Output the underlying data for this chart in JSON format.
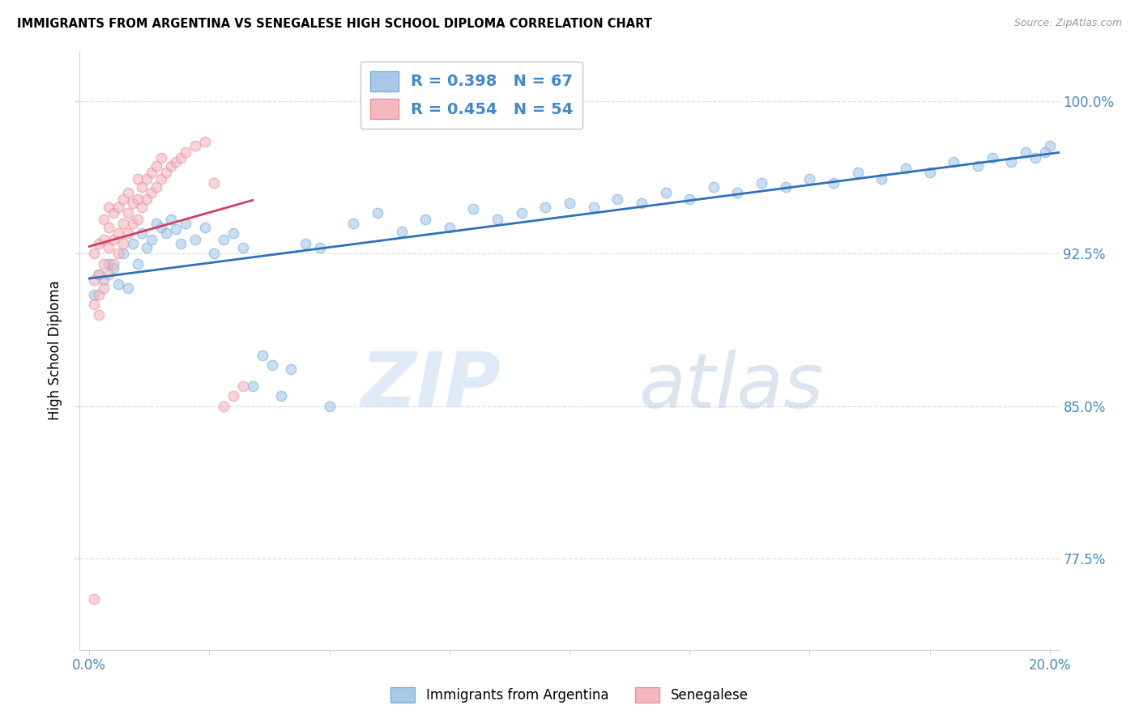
{
  "title": "IMMIGRANTS FROM ARGENTINA VS SENEGALESE HIGH SCHOOL DIPLOMA CORRELATION CHART",
  "source": "Source: ZipAtlas.com",
  "ylabel": "High School Diploma",
  "ytick_labels": [
    "77.5%",
    "85.0%",
    "92.5%",
    "100.0%"
  ],
  "ytick_values": [
    0.775,
    0.85,
    0.925,
    1.0
  ],
  "xlim": [
    -0.002,
    0.202
  ],
  "ylim": [
    0.73,
    1.025
  ],
  "xtick_positions": [
    0.0,
    0.025,
    0.05,
    0.075,
    0.1,
    0.125,
    0.15,
    0.175,
    0.2
  ],
  "legend_label1": "Immigrants from Argentina",
  "legend_label2": "Senegalese",
  "R1": 0.398,
  "N1": 67,
  "R2": 0.454,
  "N2": 54,
  "watermark_zip": "ZIP",
  "watermark_atlas": "atlas",
  "color_blue_fill": "#a8c8e8",
  "color_blue_edge": "#7ab0d8",
  "color_pink_fill": "#f4b8c0",
  "color_pink_edge": "#e890a0",
  "color_blue_line": "#3070b8",
  "color_pink_line": "#d04060",
  "color_tick_label": "#4488cc",
  "color_grid": "#dddddd",
  "marker_size": 80,
  "blue_x": [
    0.001,
    0.002,
    0.003,
    0.004,
    0.005,
    0.006,
    0.007,
    0.008,
    0.009,
    0.01,
    0.011,
    0.012,
    0.013,
    0.014,
    0.015,
    0.016,
    0.017,
    0.018,
    0.019,
    0.02,
    0.022,
    0.024,
    0.026,
    0.028,
    0.03,
    0.032,
    0.034,
    0.036,
    0.038,
    0.04,
    0.042,
    0.045,
    0.048,
    0.05,
    0.055,
    0.06,
    0.065,
    0.07,
    0.075,
    0.08,
    0.085,
    0.09,
    0.095,
    0.1,
    0.105,
    0.11,
    0.115,
    0.12,
    0.125,
    0.13,
    0.135,
    0.14,
    0.145,
    0.15,
    0.155,
    0.16,
    0.165,
    0.17,
    0.175,
    0.18,
    0.185,
    0.188,
    0.192,
    0.195,
    0.197,
    0.199,
    0.2
  ],
  "blue_y": [
    0.905,
    0.915,
    0.912,
    0.92,
    0.918,
    0.91,
    0.925,
    0.908,
    0.93,
    0.92,
    0.935,
    0.928,
    0.932,
    0.94,
    0.938,
    0.935,
    0.942,
    0.937,
    0.93,
    0.94,
    0.932,
    0.938,
    0.925,
    0.932,
    0.935,
    0.928,
    0.86,
    0.875,
    0.87,
    0.855,
    0.868,
    0.93,
    0.928,
    0.85,
    0.94,
    0.945,
    0.936,
    0.942,
    0.938,
    0.947,
    0.942,
    0.945,
    0.948,
    0.95,
    0.948,
    0.952,
    0.95,
    0.955,
    0.952,
    0.958,
    0.955,
    0.96,
    0.958,
    0.962,
    0.96,
    0.965,
    0.962,
    0.967,
    0.965,
    0.97,
    0.968,
    0.972,
    0.97,
    0.975,
    0.972,
    0.975,
    0.978
  ],
  "pink_x": [
    0.001,
    0.001,
    0.001,
    0.002,
    0.002,
    0.002,
    0.002,
    0.003,
    0.003,
    0.003,
    0.003,
    0.004,
    0.004,
    0.004,
    0.004,
    0.005,
    0.005,
    0.005,
    0.006,
    0.006,
    0.006,
    0.007,
    0.007,
    0.007,
    0.008,
    0.008,
    0.008,
    0.009,
    0.009,
    0.01,
    0.01,
    0.01,
    0.011,
    0.011,
    0.012,
    0.012,
    0.013,
    0.013,
    0.014,
    0.014,
    0.015,
    0.015,
    0.016,
    0.017,
    0.018,
    0.019,
    0.02,
    0.022,
    0.024,
    0.026,
    0.028,
    0.03,
    0.032,
    0.001
  ],
  "pink_y": [
    0.9,
    0.912,
    0.925,
    0.895,
    0.905,
    0.915,
    0.93,
    0.908,
    0.92,
    0.932,
    0.942,
    0.915,
    0.928,
    0.938,
    0.948,
    0.92,
    0.932,
    0.945,
    0.925,
    0.935,
    0.948,
    0.93,
    0.94,
    0.952,
    0.935,
    0.945,
    0.955,
    0.94,
    0.95,
    0.942,
    0.952,
    0.962,
    0.948,
    0.958,
    0.952,
    0.962,
    0.955,
    0.965,
    0.958,
    0.968,
    0.962,
    0.972,
    0.965,
    0.968,
    0.97,
    0.972,
    0.975,
    0.978,
    0.98,
    0.96,
    0.85,
    0.855,
    0.86,
    0.755
  ]
}
